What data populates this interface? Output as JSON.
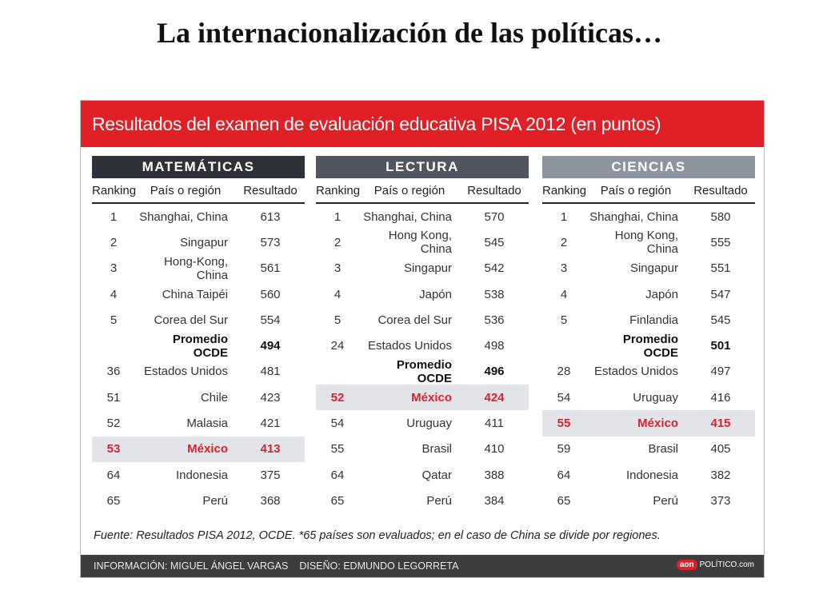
{
  "slide_title": "La internacionalización de las políticas…",
  "header_title": "Resultados del examen de evaluación educativa PISA 2012 (en puntos)",
  "columns": {
    "rank": "Ranking",
    "country": "País o región",
    "result": "Resultado"
  },
  "colors": {
    "red": "#e01f26",
    "matematicas": "#2f3138",
    "lectura": "#50555f",
    "ciencias": "#8e94a0",
    "highlight_bg": "#e3e4ea",
    "highlight_text": "#d6232a"
  },
  "panels": [
    {
      "title": "MATEMÁTICAS",
      "rows": [
        {
          "rank": "1",
          "country": "Shanghai, China",
          "result": "613"
        },
        {
          "rank": "2",
          "country": "Singapur",
          "result": "573"
        },
        {
          "rank": "3",
          "country": "Hong-Kong, China",
          "result": "561"
        },
        {
          "rank": "4",
          "country": "China Taipéi",
          "result": "560"
        },
        {
          "rank": "5",
          "country": "Corea del Sur",
          "result": "554"
        },
        {
          "rank": "",
          "country": "Promedio OCDE",
          "result": "494",
          "style": "bold"
        },
        {
          "rank": "36",
          "country": "Estados Unidos",
          "result": "481"
        },
        {
          "rank": "51",
          "country": "Chile",
          "result": "423"
        },
        {
          "rank": "52",
          "country": "Malasia",
          "result": "421"
        },
        {
          "rank": "53",
          "country": "México",
          "result": "413",
          "style": "mexico"
        },
        {
          "rank": "64",
          "country": "Indonesia",
          "result": "375"
        },
        {
          "rank": "65",
          "country": "Perú",
          "result": "368"
        }
      ]
    },
    {
      "title": "LECTURA",
      "rows": [
        {
          "rank": "1",
          "country": "Shanghai, China",
          "result": "570"
        },
        {
          "rank": "2",
          "country": "Hong Kong, China",
          "result": "545"
        },
        {
          "rank": "3",
          "country": "Singapur",
          "result": "542"
        },
        {
          "rank": "4",
          "country": "Japón",
          "result": "538"
        },
        {
          "rank": "5",
          "country": "Corea del Sur",
          "result": "536"
        },
        {
          "rank": "24",
          "country": "Estados Unidos",
          "result": "498"
        },
        {
          "rank": "",
          "country": "Promedio OCDE",
          "result": "496",
          "style": "bold"
        },
        {
          "rank": "52",
          "country": "México",
          "result": "424",
          "style": "mexico"
        },
        {
          "rank": "54",
          "country": "Uruguay",
          "result": "411"
        },
        {
          "rank": "55",
          "country": "Brasil",
          "result": "410"
        },
        {
          "rank": "64",
          "country": "Qatar",
          "result": "388"
        },
        {
          "rank": "65",
          "country": "Perú",
          "result": "384"
        }
      ]
    },
    {
      "title": "CIENCIAS",
      "rows": [
        {
          "rank": "1",
          "country": "Shanghai, China",
          "result": "580"
        },
        {
          "rank": "2",
          "country": "Hong Kong, China",
          "result": "555"
        },
        {
          "rank": "3",
          "country": "Singapur",
          "result": "551"
        },
        {
          "rank": "4",
          "country": "Japón",
          "result": "547"
        },
        {
          "rank": "5",
          "country": "Finlandia",
          "result": "545"
        },
        {
          "rank": "",
          "country": "Promedio OCDE",
          "result": "501",
          "style": "bold"
        },
        {
          "rank": "28",
          "country": "Estados Unidos",
          "result": "497"
        },
        {
          "rank": "54",
          "country": "Uruguay",
          "result": "416"
        },
        {
          "rank": "55",
          "country": "México",
          "result": "415",
          "style": "mexico"
        },
        {
          "rank": "59",
          "country": "Brasil",
          "result": "405"
        },
        {
          "rank": "64",
          "country": "Indonesia",
          "result": "382"
        },
        {
          "rank": "65",
          "country": "Perú",
          "result": "373"
        }
      ]
    }
  ],
  "source": "Fuente: Resultados PISA 2012, OCDE. *65 países son evaluados; en el caso de China se divide por regiones.",
  "footer": {
    "info": "INFORMACIÓN: MIGUEL ÁNGEL VARGAS",
    "design": "DISEÑO: EDMUNDO LEGORRETA",
    "logo_badge": "aon",
    "logo_text": "POLÍTICO.com"
  }
}
